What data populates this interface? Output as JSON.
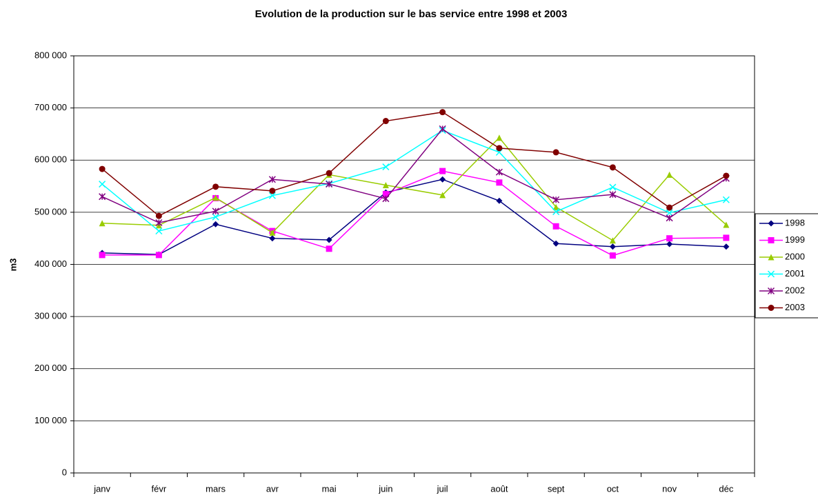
{
  "chart_data": {
    "type": "line",
    "title": "Evolution de la production sur le bas service entre 1998 et 2003",
    "y_label": "m3",
    "categories": [
      "janv",
      "févr",
      "mars",
      "avr",
      "mai",
      "juin",
      "juil",
      "août",
      "sept",
      "oct",
      "nov",
      "déc"
    ],
    "series": [
      {
        "name": "1998",
        "color": "#000080",
        "marker": "diamond",
        "values": [
          422000,
          419000,
          477000,
          450000,
          447000,
          538000,
          563000,
          522000,
          440000,
          434000,
          439000,
          434000
        ]
      },
      {
        "name": "1999",
        "color": "#ff00ff",
        "marker": "square",
        "values": [
          418000,
          418000,
          527000,
          464000,
          430000,
          535000,
          579000,
          557000,
          473000,
          417000,
          450000,
          451000
        ]
      },
      {
        "name": "2000",
        "color": "#99cc00",
        "marker": "triangle",
        "values": [
          479000,
          475000,
          528000,
          461000,
          572000,
          552000,
          533000,
          643000,
          510000,
          446000,
          572000,
          476000
        ]
      },
      {
        "name": "2001",
        "color": "#00ffff",
        "marker": "x",
        "values": [
          554000,
          464000,
          491000,
          532000,
          555000,
          587000,
          657000,
          615000,
          501000,
          548000,
          499000,
          524000
        ]
      },
      {
        "name": "2002",
        "color": "#800080",
        "marker": "star",
        "values": [
          530000,
          480000,
          502000,
          563000,
          554000,
          526000,
          660000,
          577000,
          524000,
          534000,
          489000,
          565000
        ]
      },
      {
        "name": "2003",
        "color": "#800000",
        "marker": "circle",
        "values": [
          583000,
          493000,
          549000,
          541000,
          575000,
          675000,
          692000,
          623000,
          615000,
          586000,
          509000,
          570000
        ]
      }
    ],
    "ylim": [
      0,
      800000
    ],
    "yticks": [
      0,
      {
        "value": 100000,
        "label": "100 000"
      },
      {
        "value": 200000,
        "label": "200 000"
      },
      {
        "value": 300000,
        "label": "300 000"
      },
      {
        "value": 400000,
        "label": "400 000"
      },
      {
        "value": 500000,
        "label": "500 000"
      },
      {
        "value": 600000,
        "label": "600 000"
      },
      {
        "value": 700000,
        "label": "700 000"
      },
      {
        "value": 800000,
        "label": "800 000"
      }
    ],
    "grid": true,
    "legend": "right"
  }
}
